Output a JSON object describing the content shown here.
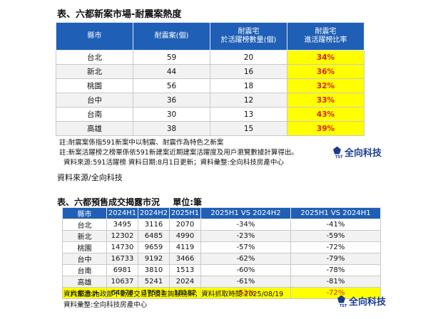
{
  "table1": {
    "title": "表、六都新案市場-耐震案熱度",
    "headers": [
      "縣市",
      "耐震案(個)",
      "耐震宅\n於活躍榜數量(個)",
      "耐震宅\n進活躍榜比率"
    ],
    "rows": [
      {
        "city": "台北",
        "count": "59",
        "active": "20",
        "ratio": "34%"
      },
      {
        "city": "新北",
        "count": "44",
        "active": "16",
        "ratio": "36%"
      },
      {
        "city": "桃園",
        "count": "56",
        "active": "18",
        "ratio": "32%"
      },
      {
        "city": "台中",
        "count": "36",
        "active": "12",
        "ratio": "33%"
      },
      {
        "city": "台南",
        "count": "30",
        "active": "13",
        "ratio": "43%"
      },
      {
        "city": "高雄",
        "count": "38",
        "active": "15",
        "ratio": "39%"
      }
    ],
    "notes": [
      "註:耐震案係指591新案中以制震、耐震作為特色之新案",
      "註:新案活躍榜之榜單係依591新建案近期建案活躍度及用戶瀏覽數據計算得出。",
      "資料來源:591活躍榜   資料日期:8月1日更新；資料彙整:全向科技房產中心"
    ],
    "logo": "全向科技"
  },
  "source_line": "資料來源/全向科技",
  "table2": {
    "title": "表、六都預售成交揭露市況",
    "unit": "單位:筆",
    "headers": [
      "縣市",
      "2024H1",
      "2024H2",
      "2025H1",
      "2025H1 VS 2024H2",
      "2025H1 VS 2024H1"
    ],
    "rows": [
      {
        "city": "台北",
        "h1_24": "3495",
        "h2_24": "3116",
        "h1_25": "2070",
        "vs_h2": "-34%",
        "vs_h1": "-41%"
      },
      {
        "city": "新北",
        "h1_24": "12302",
        "h2_24": "6485",
        "h1_25": "4990",
        "vs_h2": "-23%",
        "vs_h1": "-59%"
      },
      {
        "city": "桃園",
        "h1_24": "14730",
        "h2_24": "9659",
        "h1_25": "4119",
        "vs_h2": "-57%",
        "vs_h1": "-72%"
      },
      {
        "city": "台中",
        "h1_24": "16733",
        "h2_24": "9192",
        "h1_25": "3466",
        "vs_h2": "-62%",
        "vs_h1": "-79%"
      },
      {
        "city": "台南",
        "h1_24": "6981",
        "h2_24": "3810",
        "h1_25": "1513",
        "vs_h2": "-60%",
        "vs_h1": "-78%"
      },
      {
        "city": "高雄",
        "h1_24": "10637",
        "h2_24": "5241",
        "h1_25": "2024",
        "vs_h2": "-61%",
        "vs_h1": "-81%"
      }
    ],
    "total": {
      "city": "六都合計",
      "h1_24": "64878",
      "h2_24": "37503",
      "h1_25": "18182",
      "vs_h2": "-52%",
      "vs_h1": "-72%"
    },
    "notes": [
      "資料來源:內政部不動產交易實價查詢服務網；資料抓取時間:2025/08/19",
      "資料彙整:全向科技房產中心"
    ],
    "logo": "全向科技"
  },
  "colors": {
    "header_blue": "#1f5fb5",
    "highlight_yellow": "#ffff00",
    "highlight_red": "#e01b1b",
    "logo_blue": "#1a3c8e"
  },
  "icons": {
    "logo_mark": "tst-logo-icon"
  }
}
